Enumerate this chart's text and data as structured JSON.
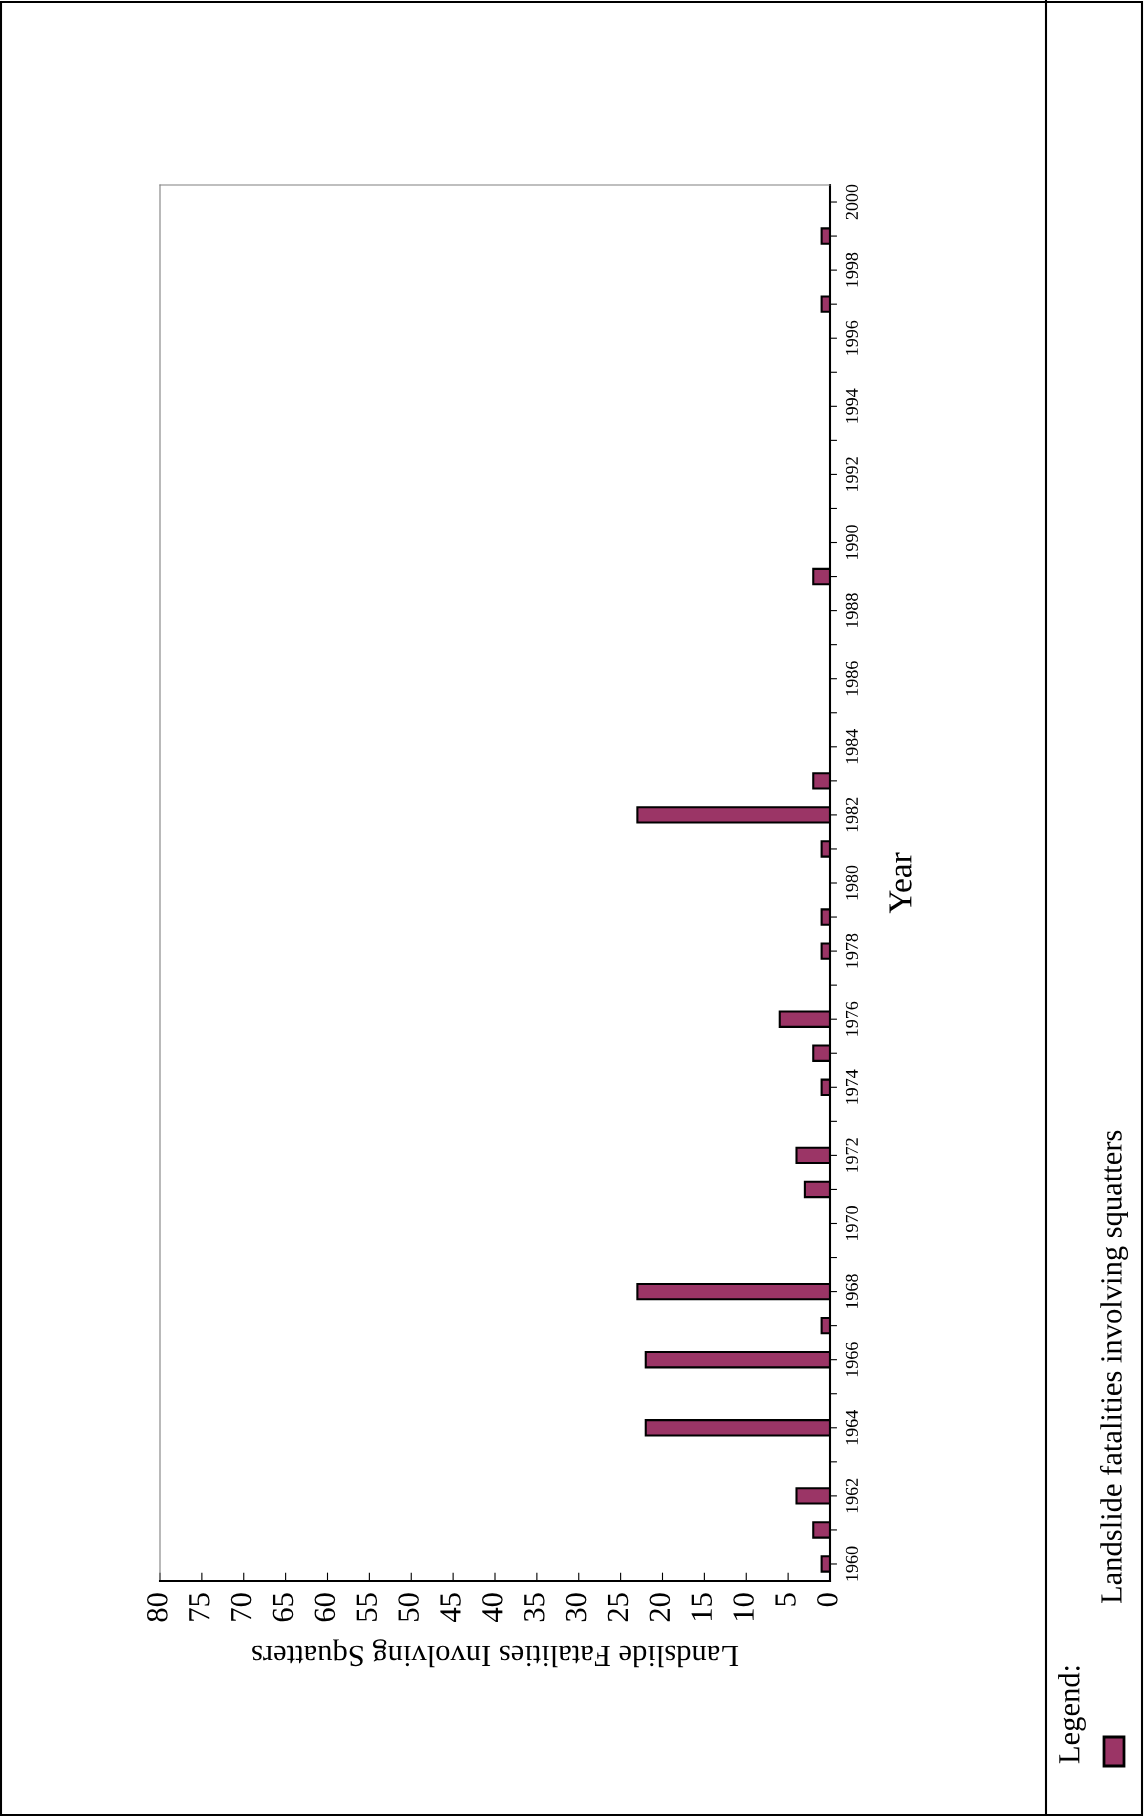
{
  "chart_data": {
    "type": "bar",
    "orientation": "horizontal",
    "xlabel": "Landslide Fatalities Involving Squatters",
    "ylabel": "Year",
    "legend_title": "Legend:",
    "legend": "right",
    "x": [
      1960,
      1961,
      1962,
      1964,
      1966,
      1967,
      1968,
      1971,
      1972,
      1974,
      1975,
      1976,
      1978,
      1979,
      1981,
      1982,
      1983,
      1989,
      1997,
      1999
    ],
    "series": [
      {
        "name": "Landslide fatalities involving squatters",
        "color": "#9b3566",
        "values": [
          1,
          2,
          4,
          22,
          22,
          1,
          23,
          3,
          4,
          1,
          2,
          6,
          1,
          1,
          1,
          23,
          2,
          2,
          1,
          1
        ]
      }
    ],
    "xlim": [
      80,
      0
    ],
    "xticks": [
      0,
      5,
      10,
      15,
      20,
      25,
      30,
      35,
      40,
      45,
      50,
      55,
      60,
      65,
      70,
      75,
      80
    ],
    "ylim": [
      1959.5,
      2000.5
    ],
    "yticks": [
      1960,
      {
        "value": 1961,
        "label": null
      },
      1962,
      {
        "value": 1963,
        "label": null
      },
      1964,
      {
        "value": 1965,
        "label": null
      },
      1966,
      {
        "value": 1967,
        "label": null
      },
      1968,
      {
        "value": 1969,
        "label": null
      },
      1970,
      {
        "value": 1971,
        "label": null
      },
      1972,
      {
        "value": 1973,
        "label": null
      },
      1974,
      {
        "value": 1975,
        "label": null
      },
      1976,
      {
        "value": 1977,
        "label": null
      },
      1978,
      {
        "value": 1979,
        "label": null
      },
      1980,
      {
        "value": 1981,
        "label": null
      },
      1982,
      {
        "value": 1983,
        "label": null
      },
      1984,
      {
        "value": 1985,
        "label": null
      },
      1986,
      {
        "value": 1987,
        "label": null
      },
      1988,
      {
        "value": 1989,
        "label": null
      },
      1990,
      {
        "value": 1991,
        "label": null
      },
      1992,
      {
        "value": 1993,
        "label": null
      },
      1994,
      {
        "value": 1995,
        "label": null
      },
      1996,
      {
        "value": 1997,
        "label": null
      },
      1998,
      {
        "value": 1999,
        "label": null
      },
      2000
    ],
    "grid": false
  }
}
